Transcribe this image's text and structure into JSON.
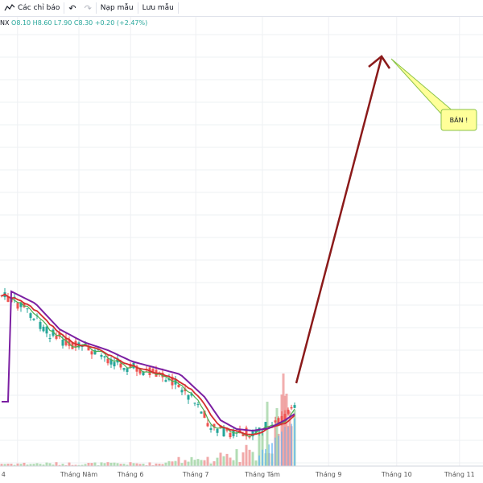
{
  "toolbar": {
    "indicators_label": "Các chỉ báo",
    "undo_icon": "undo-icon",
    "redo_icon": "redo-icon",
    "load_template_label": "Nạp mẫu",
    "save_template_label": "Lưu mẫu"
  },
  "legend": {
    "symbol": "NX",
    "open": "O8.10",
    "high": "H8.60",
    "low": "L7.90",
    "close": "C8.30",
    "change": "+0.20 (+2.47%)"
  },
  "annotation": {
    "label": "BÁN !"
  },
  "x_axis_labels": [
    {
      "text": "4",
      "pos": 0.003
    },
    {
      "text": "Tháng Năm",
      "pos": 0.13
    },
    {
      "text": "Tháng 6",
      "pos": 0.237
    },
    {
      "text": "Tháng 7",
      "pos": 0.372
    },
    {
      "text": "Tháng Tám",
      "pos": 0.51
    },
    {
      "text": "Tháng 9",
      "pos": 0.647
    },
    {
      "text": "Tháng 10",
      "pos": 0.788
    },
    {
      "text": "Tháng 11",
      "pos": 0.918
    }
  ],
  "colors": {
    "up": "#26a69a",
    "down": "#ef5350",
    "ma_red": "#d32f2f",
    "ma_purple": "#7b1fa2",
    "ma_green": "#4caf50",
    "arrow": "#8b1a1a",
    "note_fill": "#ffff99",
    "note_border": "#8bc34a",
    "grid": "#eef0f3"
  }
}
